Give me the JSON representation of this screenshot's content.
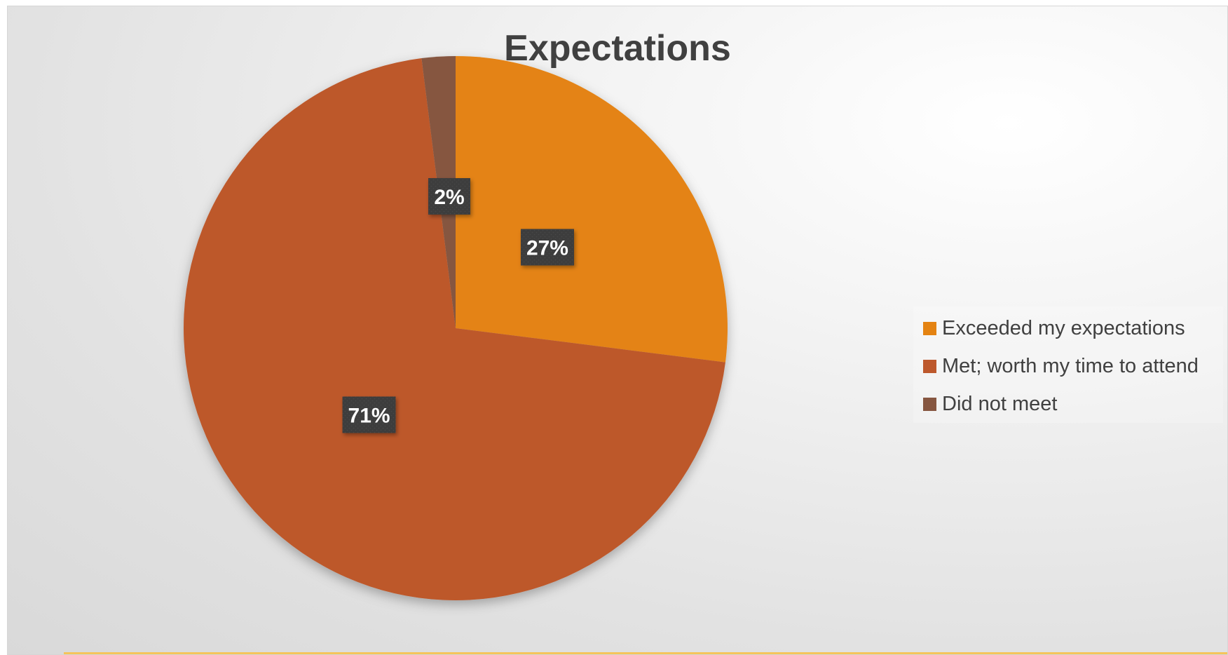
{
  "chart_data": {
    "type": "pie",
    "title": "Expectations",
    "categories": [
      "Exceeded my expectations",
      "Met; worth my time to attend",
      "Did not meet"
    ],
    "values": [
      27,
      71,
      2
    ],
    "data_labels": [
      "27%",
      "71%",
      "2%"
    ],
    "colors": [
      "#E48312",
      "#BD582C",
      "#865640"
    ],
    "legend_position": "right",
    "start_angle_deg": 0,
    "direction": "clockwise"
  }
}
